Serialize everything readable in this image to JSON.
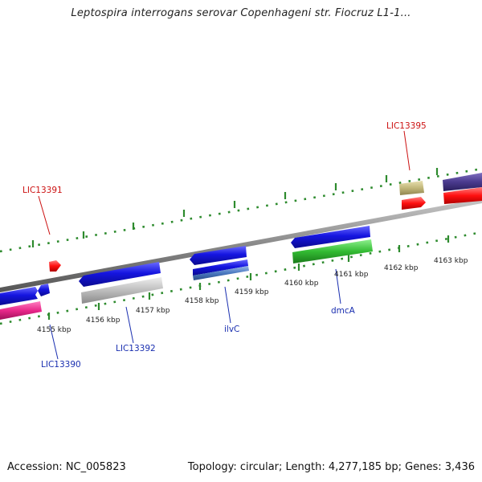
{
  "title": "Leptospira interrogans serovar Copenhageni str. Fiocruz L1-1...",
  "footer": {
    "accession": "Accession: NC_005823",
    "summary": "Topology: circular; Length: 4,277,185 bp; Genes: 3,436"
  },
  "ticks": [
    {
      "label": "4155 kbp"
    },
    {
      "label": "4156 kbp"
    },
    {
      "label": "4157 kbp"
    },
    {
      "label": "4158 kbp"
    },
    {
      "label": "4159 kbp"
    },
    {
      "label": "4160 kbp"
    },
    {
      "label": "4161 kbp"
    },
    {
      "label": "4162 kbp"
    },
    {
      "label": "4163 kbp"
    }
  ],
  "genes": [
    {
      "name": "LIC13390"
    },
    {
      "name": "LIC13391"
    },
    {
      "name": "LIC13392"
    },
    {
      "name": "ilvC"
    },
    {
      "name": "dmcA"
    },
    {
      "name": "LIC13395"
    }
  ],
  "colors": {
    "backbone": "#888888",
    "tick": "#2e8b2e",
    "gene_blue": "#1515e0",
    "gene_pink": "#e8288a",
    "gene_red": "#ff1010",
    "gene_gray": "#bdbdbd",
    "gene_green": "#33bb33",
    "gene_khaki": "#c2b77a",
    "gene_purple": "#4a3a8e",
    "gene_steel": "#4a78c0",
    "label_red": "#cc1111",
    "label_blue": "#1a2fb0"
  }
}
